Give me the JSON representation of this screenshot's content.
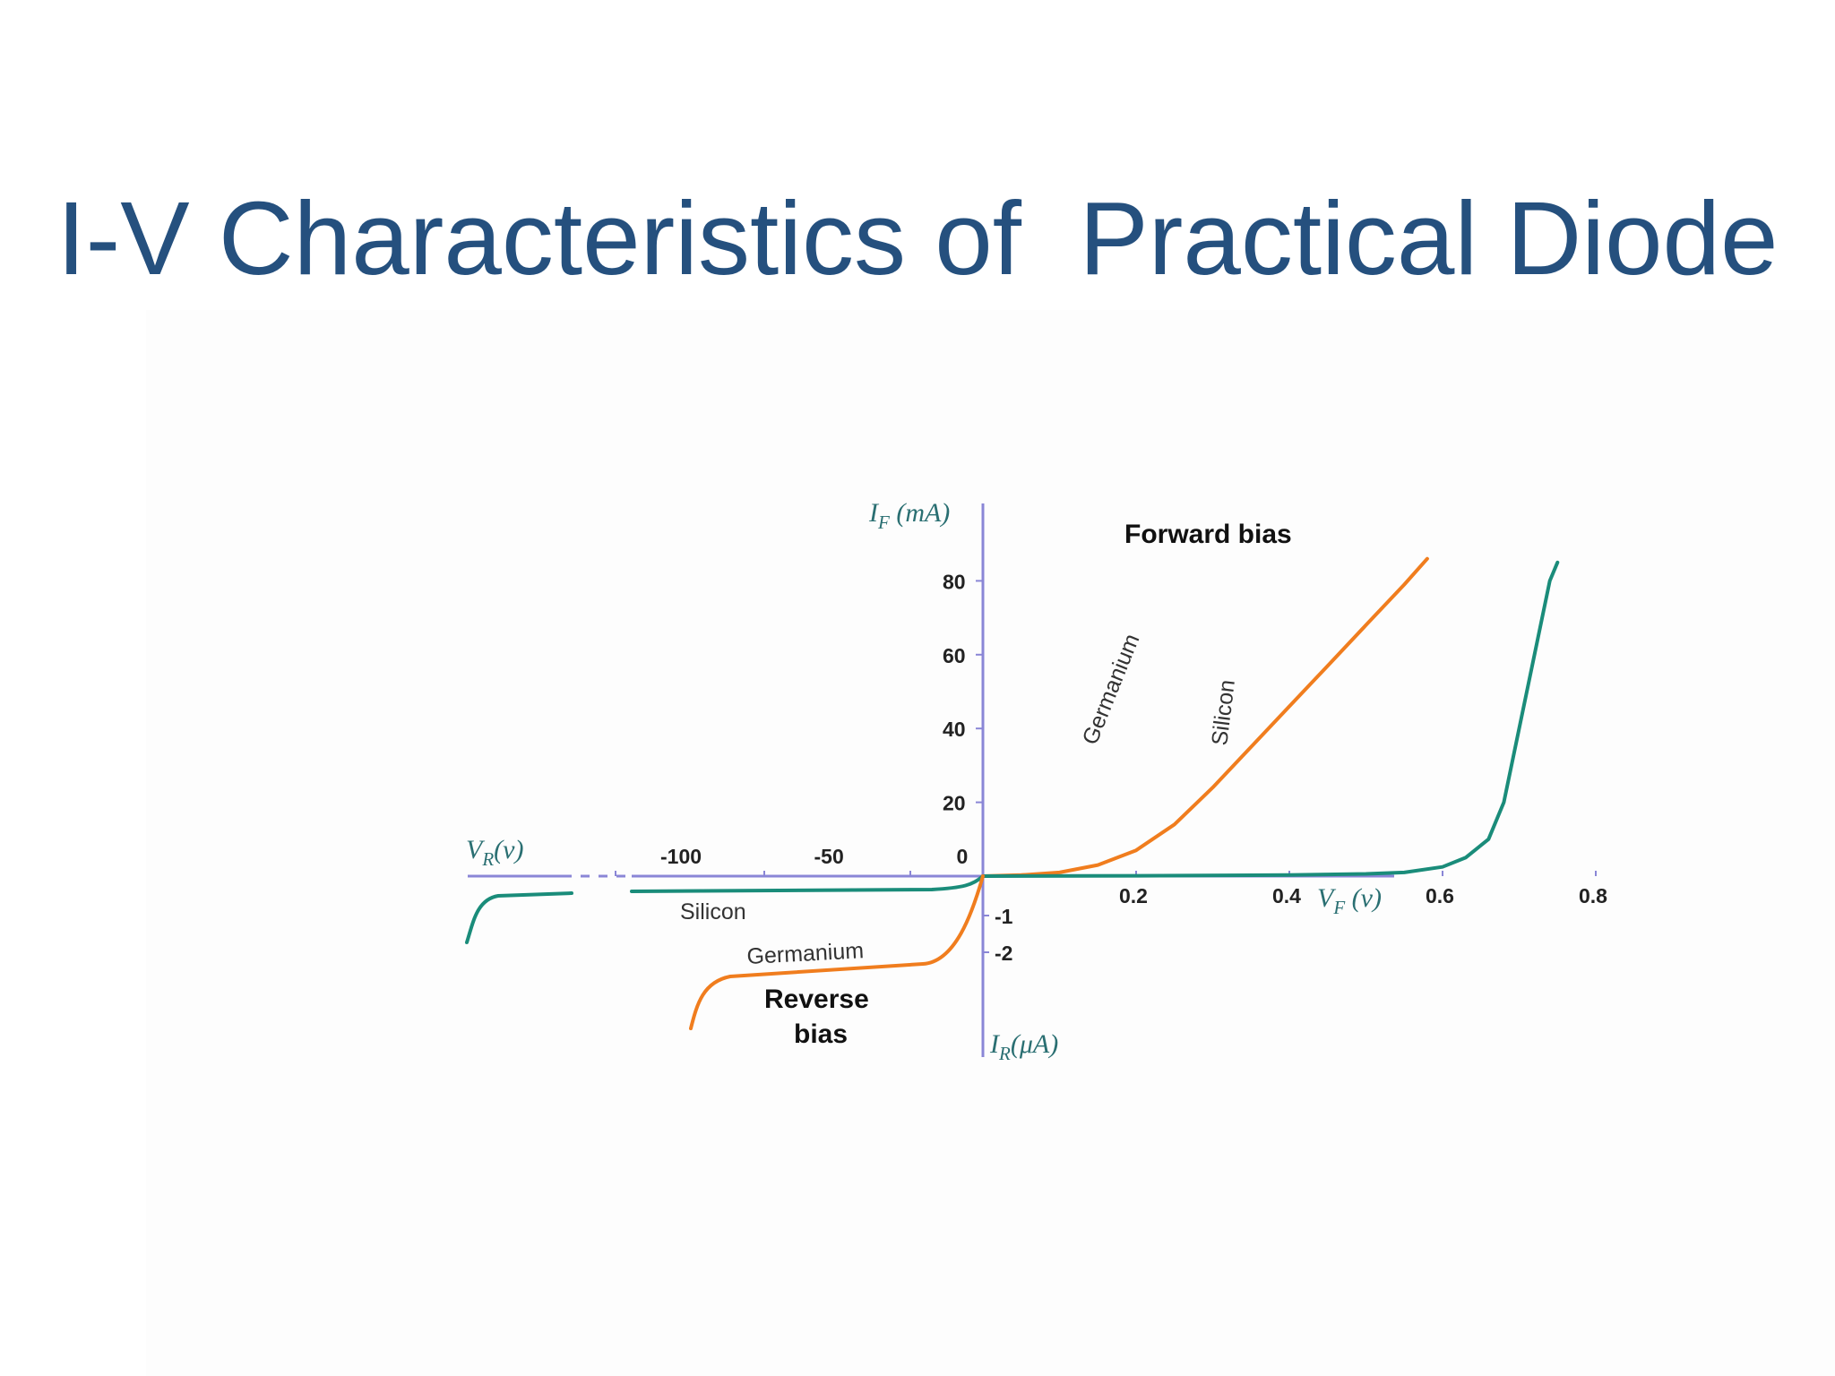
{
  "slide": {
    "title": "I-V Characteristics of  Practical Diode"
  },
  "colors": {
    "title": "#25507e",
    "axis": "#8a86d6",
    "silicon": "#1a8c7a",
    "germanium": "#f07d1e"
  },
  "chart_data": {
    "type": "line",
    "forward": {
      "x_ticks": [
        "0.2",
        "0.4",
        "0.6",
        "0.8"
      ],
      "y_ticks": [
        "20",
        "40",
        "60",
        "80"
      ],
      "x_range": [
        0,
        1.0
      ],
      "y_range": [
        0,
        90
      ]
    },
    "reverse": {
      "x_ticks": [
        "-100",
        "-50",
        "0"
      ],
      "y_ticks": [
        "-1",
        "-2"
      ]
    },
    "axis_titles": {
      "if": {
        "main": "I",
        "sub": "F",
        "unit": " (mA)"
      },
      "ir": {
        "main": "I",
        "sub": "R",
        "unit": "(μA)"
      },
      "vr": {
        "main": "V",
        "sub": "R",
        "unit": "(v)"
      },
      "vf": {
        "main": "V",
        "sub": "F",
        "unit": " (v)"
      }
    },
    "region_labels": {
      "forward": "Forward bias",
      "reverse_line1": "Reverse",
      "reverse_line2": "bias"
    },
    "series": [
      {
        "name": "Germanium",
        "color": "#f07d1e",
        "forward_points": [
          [
            0,
            0
          ],
          [
            0.05,
            0.3
          ],
          [
            0.1,
            1
          ],
          [
            0.15,
            3
          ],
          [
            0.2,
            7
          ],
          [
            0.25,
            14
          ],
          [
            0.3,
            24
          ],
          [
            0.35,
            35
          ],
          [
            0.4,
            46
          ],
          [
            0.45,
            57
          ],
          [
            0.5,
            68
          ],
          [
            0.55,
            79
          ],
          [
            0.58,
            86
          ]
        ]
      },
      {
        "name": "Silicon",
        "color": "#1a8c7a",
        "forward_points": [
          [
            0,
            0
          ],
          [
            0.2,
            0.1
          ],
          [
            0.4,
            0.3
          ],
          [
            0.5,
            0.6
          ],
          [
            0.55,
            1
          ],
          [
            0.6,
            2.5
          ],
          [
            0.63,
            5
          ],
          [
            0.66,
            10
          ],
          [
            0.68,
            20
          ],
          [
            0.7,
            40
          ],
          [
            0.72,
            60
          ],
          [
            0.74,
            80
          ],
          [
            0.75,
            85
          ]
        ]
      }
    ],
    "curve_labels": {
      "germanium_forward": "Germanium",
      "silicon_forward": "Silicon",
      "silicon_reverse": "Silicon",
      "germanium_reverse": "Germanium"
    }
  }
}
